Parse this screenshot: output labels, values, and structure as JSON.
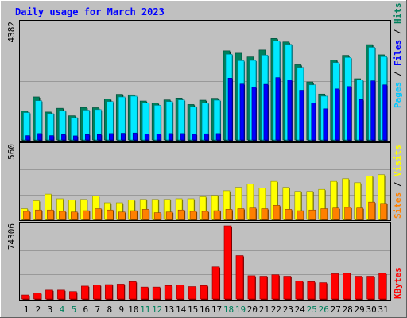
{
  "chart_data": [
    {
      "type": "bar",
      "title": "Daily usage for March 2023",
      "categories": [
        "1",
        "2",
        "3",
        "4",
        "5",
        "6",
        "7",
        "8",
        "9",
        "10",
        "11",
        "12",
        "13",
        "14",
        "15",
        "16",
        "17",
        "18",
        "19",
        "20",
        "21",
        "22",
        "23",
        "24",
        "25",
        "26",
        "27",
        "28",
        "29",
        "30",
        "31"
      ],
      "weekend_days": [
        "4",
        "5",
        "11",
        "12",
        "18",
        "19",
        "25",
        "26"
      ],
      "ymax_label": "4382",
      "ylim": [
        0,
        4382
      ],
      "grid": true,
      "series": [
        {
          "name": "Hits",
          "color": "#00805c",
          "values": [
            1080,
            1600,
            1040,
            1180,
            900,
            1210,
            1200,
            1520,
            1700,
            1680,
            1450,
            1370,
            1490,
            1560,
            1320,
            1480,
            1550,
            3320,
            3230,
            3090,
            3350,
            3780,
            3650,
            2800,
            2160,
            1710,
            2980,
            3150,
            2280,
            3550,
            3170
          ]
        },
        {
          "name": "Files",
          "color": "#00e8ff",
          "values": [
            1020,
            1460,
            980,
            1090,
            830,
            1110,
            1130,
            1430,
            1600,
            1630,
            1380,
            1290,
            1430,
            1490,
            1240,
            1380,
            1480,
            3190,
            2950,
            2960,
            3160,
            3680,
            3560,
            2700,
            2050,
            1630,
            2880,
            3070,
            2230,
            3450,
            3100
          ]
        },
        {
          "name": "Pages",
          "color": "#0000ff",
          "values": [
            160,
            240,
            160,
            200,
            150,
            200,
            200,
            240,
            250,
            260,
            220,
            220,
            240,
            240,
            210,
            230,
            240,
            2300,
            2080,
            1960,
            2070,
            2320,
            2230,
            1850,
            1380,
            1160,
            1900,
            1990,
            1500,
            2200,
            2050
          ]
        }
      ]
    },
    {
      "type": "bar",
      "ymax_label": "560",
      "ylim": [
        0,
        560
      ],
      "grid": true,
      "series": [
        {
          "name": "Visits",
          "color": "#ffff00",
          "values": [
            80,
            140,
            190,
            155,
            145,
            150,
            175,
            125,
            125,
            145,
            150,
            150,
            150,
            155,
            155,
            170,
            180,
            215,
            240,
            265,
            235,
            285,
            240,
            210,
            210,
            225,
            285,
            305,
            275,
            325,
            335
          ]
        },
        {
          "name": "Sites",
          "color": "#ff8000",
          "values": [
            60,
            70,
            70,
            60,
            55,
            65,
            80,
            70,
            55,
            65,
            75,
            50,
            55,
            70,
            60,
            60,
            65,
            75,
            80,
            85,
            80,
            105,
            75,
            65,
            70,
            80,
            85,
            90,
            85,
            130,
            120
          ]
        }
      ]
    },
    {
      "type": "bar",
      "ymax_label": "74306",
      "ylim": [
        0,
        74306
      ],
      "grid": true,
      "series": [
        {
          "name": "KBytes",
          "color": "#ff0000",
          "values": [
            4000,
            6000,
            9000,
            9000,
            7500,
            13000,
            14000,
            14500,
            15000,
            17500,
            12000,
            12000,
            13500,
            14000,
            12500,
            13500,
            32500,
            74306,
            44000,
            23500,
            23000,
            24500,
            23000,
            18000,
            17500,
            16500,
            25500,
            26000,
            23000,
            23000,
            26000
          ]
        }
      ]
    }
  ]
}
